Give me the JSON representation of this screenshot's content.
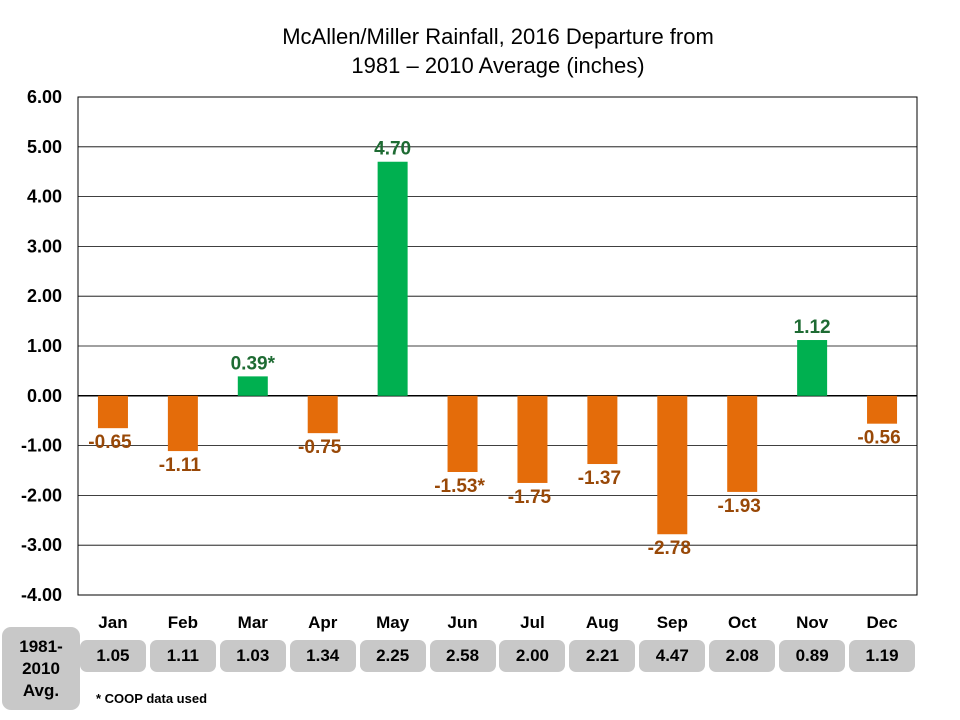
{
  "chart_data": {
    "type": "bar",
    "title_lines": [
      "McAllen/Miller Rainfall, 2016 Departure from",
      "1981 – 2010 Average (inches)"
    ],
    "categories": [
      "Jan",
      "Feb",
      "Mar",
      "Apr",
      "May",
      "Jun",
      "Jul",
      "Aug",
      "Sep",
      "Oct",
      "Nov",
      "Dec"
    ],
    "values": [
      -0.65,
      -1.11,
      0.39,
      -0.75,
      4.7,
      -1.53,
      -1.75,
      -1.37,
      -2.78,
      -1.93,
      1.12,
      -0.56
    ],
    "data_labels": [
      "-0.65",
      "-1.11",
      "0.39*",
      "-0.75",
      "4.70",
      "-1.53*",
      "-1.75",
      "-1.37",
      "-2.78",
      "-1.93",
      "1.12",
      "-0.56"
    ],
    "ylim": [
      -4,
      6
    ],
    "y_ticks": [
      6,
      5,
      4,
      3,
      2,
      1,
      0,
      -1,
      -2,
      -3,
      -4
    ],
    "y_tick_labels": [
      "6.00",
      "5.00",
      "4.00",
      "3.00",
      "2.00",
      "1.00",
      "0.00",
      "-1.00",
      "-2.00",
      "-3.00",
      "-4.00"
    ],
    "grid": true,
    "colors": {
      "positive": "#00b050",
      "negative": "#e46c0a",
      "positive_label": "#1e6b33",
      "negative_label": "#984807"
    }
  },
  "averages": {
    "title": "1981-\n2010\nAvg.",
    "values": [
      "1.05",
      "1.11",
      "1.03",
      "1.34",
      "2.25",
      "2.58",
      "2.00",
      "2.21",
      "4.47",
      "2.08",
      "0.89",
      "1.19"
    ]
  },
  "footnote": "* COOP data used"
}
